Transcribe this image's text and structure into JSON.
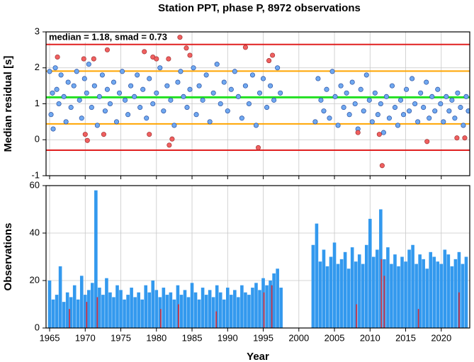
{
  "chart_data": [
    {
      "type": "scatter",
      "title": "Station PPT, phase P, 8972 observations",
      "ylabel": "Median residual [s]",
      "annotation": "median = 1.18, smad = 0.73",
      "xlim": [
        1964.5,
        2024
      ],
      "ylim": [
        -1,
        3
      ],
      "yticks": [
        -1,
        0,
        1,
        2,
        3
      ],
      "xticks": [
        1965,
        1970,
        1975,
        1980,
        1985,
        1990,
        1995,
        2000,
        2005,
        2010,
        2015,
        2020
      ],
      "grid": true,
      "hlines": [
        {
          "value": 2.65,
          "color": "#e02020"
        },
        {
          "value": 1.91,
          "color": "#ffa500"
        },
        {
          "value": 1.18,
          "color": "#22e022"
        },
        {
          "value": 0.44,
          "color": "#ffa500"
        },
        {
          "value": -0.29,
          "color": "#e02020"
        }
      ],
      "series": [
        {
          "color": "#6fa8f0",
          "x": [
            1965.0,
            1965.2,
            1965.4,
            1965.5,
            1965.8,
            1966.0,
            1966.3,
            1966.6,
            1967.0,
            1967.3,
            1967.6,
            1968.0,
            1968.4,
            1968.8,
            1969.2,
            1969.5,
            1969.9,
            1970.2,
            1970.5,
            1970.9,
            1971.3,
            1971.7,
            1972.0,
            1972.4,
            1972.8,
            1973.1,
            1973.5,
            1974.0,
            1974.4,
            1974.8,
            1975.2,
            1975.6,
            1976.0,
            1976.4,
            1976.9,
            1977.3,
            1977.7,
            1978.1,
            1978.6,
            1979.0,
            1979.5,
            1980.0,
            1980.5,
            1981.0,
            1981.5,
            1982.0,
            1982.5,
            1983.0,
            1983.4,
            1983.8,
            1984.3,
            1984.7,
            1985.2,
            1985.6,
            1986.0,
            1986.5,
            1987.0,
            1987.5,
            1988.0,
            1988.5,
            1989.0,
            1989.5,
            1990.0,
            1990.5,
            1991.0,
            1991.5,
            1992.0,
            1992.5,
            1993.0,
            1993.5,
            1994.0,
            1994.5,
            1995.0,
            1995.5,
            1996.0,
            1996.5,
            1997.0,
            1997.4,
            2002.3,
            2002.7,
            2003.1,
            2003.5,
            2003.9,
            2004.3,
            2004.7,
            2005.1,
            2005.5,
            2005.9,
            2006.3,
            2006.7,
            2007.1,
            2007.5,
            2007.9,
            2008.3,
            2008.7,
            2009.1,
            2009.5,
            2009.9,
            2010.3,
            2010.7,
            2011.1,
            2011.5,
            2011.9,
            2012.3,
            2012.7,
            2013.1,
            2013.5,
            2013.9,
            2014.3,
            2014.7,
            2015.1,
            2015.5,
            2015.9,
            2016.3,
            2016.7,
            2017.1,
            2017.5,
            2017.9,
            2018.3,
            2018.7,
            2019.1,
            2019.5,
            2019.9,
            2020.3,
            2020.7,
            2021.1,
            2021.5,
            2021.9,
            2022.3,
            2022.7,
            2023.1,
            2023.5,
            2023.8
          ],
          "values": [
            1.9,
            0.7,
            1.3,
            0.3,
            2.0,
            1.4,
            1.0,
            1.8,
            1.2,
            0.5,
            1.6,
            0.9,
            1.5,
            1.9,
            1.1,
            0.6,
            1.7,
            1.3,
            2.1,
            0.9,
            1.5,
            0.4,
            1.2,
            1.8,
            0.8,
            1.4,
            1.0,
            1.6,
            0.5,
            1.3,
            1.9,
            1.1,
            0.7,
            1.5,
            1.2,
            1.8,
            0.9,
            1.4,
            0.6,
            1.7,
            1.0,
            1.3,
            2.0,
            0.8,
            1.5,
            1.1,
            0.4,
            1.6,
            1.9,
            1.2,
            0.9,
            1.4,
            2.0,
            0.7,
            1.5,
            1.1,
            1.8,
            0.5,
            1.3,
            2.1,
            1.0,
            1.6,
            0.8,
            1.4,
            1.9,
            1.2,
            0.6,
            1.5,
            1.0,
            1.8,
            0.4,
            1.3,
            1.7,
            0.9,
            1.5,
            1.1,
            2.0,
            1.3,
            0.5,
            1.7,
            1.1,
            0.8,
            1.4,
            0.6,
            1.9,
            1.2,
            0.4,
            1.5,
            0.9,
            1.3,
            0.7,
            1.6,
            1.0,
            0.3,
            1.4,
            0.8,
            1.8,
            1.1,
            0.5,
            1.3,
            0.7,
            1.0,
            0.2,
            1.2,
            0.6,
            1.5,
            0.9,
            0.4,
            1.1,
            0.7,
            1.4,
            0.8,
            1.7,
            1.0,
            0.5,
            1.3,
            0.9,
            1.6,
            0.6,
            1.2,
            0.8,
            1.4,
            1.0,
            0.5,
            1.2,
            0.8,
            1.1,
            0.6,
            1.3,
            0.9,
            0.4,
            1.2,
            0.8
          ]
        },
        {
          "color": "#f06060",
          "x": [
            1966.1,
            1969.8,
            1970.0,
            1970.3,
            1971.2,
            1972.6,
            1973.1,
            1978.3,
            1979.0,
            1979.5,
            1980.0,
            1981.7,
            1981.8,
            1982.2,
            1983.3,
            1984.2,
            1984.7,
            1992.5,
            1994.3,
            1995.8,
            1996.3,
            2008.3,
            2011.3,
            2011.7,
            2018.0,
            2022.2,
            2023.3
          ],
          "values": [
            2.3,
            2.25,
            0.15,
            -0.02,
            2.25,
            0.15,
            2.5,
            2.45,
            0.15,
            2.3,
            2.25,
            2.25,
            -0.15,
            0.02,
            2.85,
            2.55,
            2.35,
            2.57,
            -0.22,
            2.2,
            2.35,
            0.2,
            0.15,
            -0.72,
            -0.05,
            0.05,
            0.05
          ]
        }
      ]
    },
    {
      "type": "bar",
      "xlabel": "Year",
      "ylabel": "Observations",
      "xlim": [
        1964.5,
        2024
      ],
      "ylim": [
        0,
        60
      ],
      "yticks": [
        0,
        20,
        40,
        60
      ],
      "xticks": [
        1965,
        1970,
        1975,
        1980,
        1985,
        1990,
        1995,
        2000,
        2005,
        2010,
        2015,
        2020
      ],
      "grid": true,
      "series": [
        {
          "color": "#3399ee",
          "x": [
            1965.0,
            1965.5,
            1966.0,
            1966.5,
            1967.0,
            1967.5,
            1968.0,
            1968.5,
            1969.0,
            1969.5,
            1970.0,
            1970.5,
            1971.0,
            1971.5,
            1972.0,
            1972.5,
            1973.0,
            1973.5,
            1974.0,
            1974.5,
            1975.0,
            1975.5,
            1976.0,
            1976.5,
            1977.0,
            1977.5,
            1978.0,
            1978.5,
            1979.0,
            1979.5,
            1980.0,
            1980.5,
            1981.0,
            1981.5,
            1982.0,
            1982.5,
            1983.0,
            1983.5,
            1984.0,
            1984.5,
            1985.0,
            1985.5,
            1986.0,
            1986.5,
            1987.0,
            1987.5,
            1988.0,
            1988.5,
            1989.0,
            1989.5,
            1990.0,
            1990.5,
            1991.0,
            1991.5,
            1992.0,
            1992.5,
            1993.0,
            1993.5,
            1994.0,
            1994.5,
            1995.0,
            1995.5,
            1996.0,
            1996.5,
            1997.0,
            1997.5,
            2002.0,
            2002.5,
            2003.0,
            2003.5,
            2004.0,
            2004.5,
            2005.0,
            2005.5,
            2006.0,
            2006.5,
            2007.0,
            2007.5,
            2008.0,
            2008.5,
            2009.0,
            2009.5,
            2010.0,
            2010.5,
            2011.0,
            2011.5,
            2012.0,
            2012.5,
            2013.0,
            2013.5,
            2014.0,
            2014.5,
            2015.0,
            2015.5,
            2016.0,
            2016.5,
            2017.0,
            2017.5,
            2018.0,
            2018.5,
            2019.0,
            2019.5,
            2020.0,
            2020.5,
            2021.0,
            2021.5,
            2022.0,
            2022.5,
            2023.0,
            2023.5
          ],
          "values": [
            20,
            12,
            14,
            26,
            11,
            15,
            13,
            18,
            12,
            22,
            14,
            16,
            19,
            58,
            17,
            14,
            21,
            15,
            13,
            18,
            16,
            12,
            14,
            17,
            13,
            15,
            12,
            18,
            15,
            20,
            16,
            13,
            17,
            14,
            15,
            12,
            18,
            14,
            16,
            13,
            19,
            15,
            12,
            17,
            14,
            16,
            13,
            18,
            15,
            12,
            17,
            14,
            16,
            13,
            18,
            15,
            14,
            17,
            19,
            16,
            21,
            18,
            20,
            23,
            25,
            17,
            35,
            44,
            28,
            33,
            26,
            30,
            36,
            27,
            29,
            32,
            25,
            34,
            28,
            31,
            27,
            35,
            46,
            30,
            33,
            50,
            29,
            34,
            27,
            31,
            26,
            30,
            28,
            33,
            35,
            27,
            31,
            29,
            25,
            32,
            30,
            28,
            27,
            33,
            31,
            26,
            29,
            32,
            27,
            30
          ]
        },
        {
          "color": "#cc3344",
          "x": [
            1967.8,
            1970.2,
            1971.7,
            1980.6,
            1983.1,
            1988.4,
            1995.1,
            1996.2,
            2008.1,
            2011.6,
            2012.0,
            2016.8,
            2022.5
          ],
          "values": [
            8,
            11,
            13,
            8,
            10,
            7,
            15,
            18,
            10,
            29,
            22,
            8,
            15
          ]
        }
      ]
    }
  ]
}
